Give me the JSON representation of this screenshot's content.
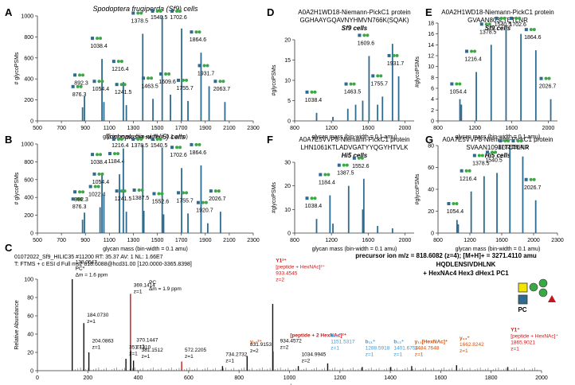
{
  "chart_data": [
    {
      "id": "A",
      "type": "bar",
      "panel_label": "A",
      "title": "Spodoptera frugiperda (Sf9) cells",
      "xlabel": "glycan mass (bin-width = 0.1 amu)",
      "ylabel": "# glycoPSMs",
      "xlim": [
        500,
        2300
      ],
      "ylim": [
        0,
        1000
      ],
      "xticks": [
        500,
        700,
        900,
        1100,
        1300,
        1500,
        1700,
        1900,
        2100,
        2300
      ],
      "yticks": [
        0,
        200,
        400,
        600,
        800,
        1000
      ],
      "x": [
        876.3,
        892.3,
        1038.4,
        1054.4,
        1216.4,
        1241.5,
        1378.5,
        1463.5,
        1540.5,
        1609.6,
        1702.6,
        1755.7,
        1864.6,
        1931.7,
        2063.7
      ],
      "values": [
        130,
        240,
        590,
        180,
        370,
        150,
        830,
        210,
        1000,
        250,
        880,
        190,
        650,
        330,
        180
      ],
      "labels": [
        "876.3",
        "892.3",
        "1038.4",
        "1054.4",
        "1216.4",
        "1241.5",
        "1378.5",
        "1463.5",
        "1540.5",
        "1609.6",
        "1702.6",
        "1755.7",
        "1864.6",
        "1931.7",
        "2063.7"
      ]
    },
    {
      "id": "B",
      "type": "bar",
      "panel_label": "B",
      "title": "Trichoplusia ni (Hi5) cells",
      "xlabel": "glycan mass (bin-width = 0.1 amu)",
      "ylabel": "# glycoPSMs",
      "xlim": [
        500,
        2300
      ],
      "ylim": [
        0,
        1000
      ],
      "xticks": [
        500,
        700,
        900,
        1100,
        1300,
        1500,
        1700,
        1900,
        2100,
        2300
      ],
      "yticks": [
        0,
        200,
        400,
        600,
        800,
        1000
      ],
      "x": [
        876.3,
        892.3,
        1022.4,
        1038.4,
        1054.4,
        1184.4,
        1216.4,
        1241.5,
        1378.5,
        1387.5,
        1540.5,
        1552.6,
        1702.6,
        1755.7,
        1864.6,
        1920.7,
        2026.7
      ],
      "values": [
        150,
        230,
        290,
        650,
        430,
        660,
        950,
        240,
        990,
        250,
        960,
        210,
        730,
        220,
        760,
        110,
        240
      ],
      "labels": [
        "876.3",
        "892.3",
        "1022.4",
        "1038.4",
        "1054.4",
        "1184.4",
        "1216.4",
        "1241.5",
        "1378.5",
        "1387.5",
        "1540.5",
        "1552.6",
        "1702.6",
        "1755.7",
        "1864.6",
        "1920.7",
        "2026.7"
      ]
    },
    {
      "id": "D",
      "type": "bar",
      "panel_label": "D",
      "title_lines": [
        "A0A2H1WD18-Niemann-PickC1 protein",
        "GGHAAYGQAVNYHMVN766K(SQAK)",
        "Sf9 cells"
      ],
      "xlabel": "glycan mass (bin-width = 0.1 amu)",
      "ylabel": "#glycoPSMs",
      "xlim": [
        800,
        2100
      ],
      "ylim": [
        0,
        20
      ],
      "xticks": [
        800,
        1200,
        1600,
        2000
      ],
      "yticks": [
        0,
        5,
        10,
        15,
        20
      ],
      "x": [
        1038.4,
        1216.4,
        1378.5,
        1463.5,
        1540.5,
        1609.6,
        1702.6,
        1755.7,
        1864.6,
        1931.7
      ],
      "values": [
        2,
        1,
        3,
        4,
        5,
        16,
        4,
        6,
        19,
        11
      ],
      "labels": [
        "1038.4",
        "",
        "",
        "1463.5",
        "",
        "1609.6",
        "",
        "1755.7",
        "",
        "1931.7"
      ]
    },
    {
      "id": "E",
      "type": "bar",
      "panel_label": "E",
      "title_lines": [
        "A0A2H1WD18-Niemann-PickC1 protein",
        "GVAAN803LTETLNR",
        "Sf9 cells"
      ],
      "xlabel": "glycan mass (bin-width = 0.1 amu)",
      "ylabel": "#glycoPSMs",
      "xlim": [
        800,
        2100
      ],
      "ylim": [
        0,
        18
      ],
      "xticks": [
        800,
        1200,
        1600,
        2000
      ],
      "yticks": [
        0,
        2,
        4,
        6,
        8,
        10,
        12,
        14,
        16,
        18
      ],
      "x": [
        1038.4,
        1054.4,
        1216.4,
        1378.5,
        1540.5,
        1702.6,
        1864.6,
        2026.7
      ],
      "values": [
        4,
        3,
        9,
        14,
        17,
        16,
        13,
        4
      ],
      "labels": [
        "",
        "1054.4",
        "1216.4",
        "1378.5",
        "1540.5",
        "1702.6",
        "1864.6",
        "2026.7"
      ]
    },
    {
      "id": "F",
      "type": "bar",
      "panel_label": "F",
      "title_lines": [
        "A0A7E5VVP8-Niemann-PickC1 protein",
        "LHN1061KTLADVGATYYQGYHTVLK",
        "Hi5 cells"
      ],
      "xlabel": "glycan mass (bin-width = 0.1 amu)",
      "ylabel": "#glycoPSMs",
      "xlim": [
        800,
        2100
      ],
      "ylim": [
        0,
        30
      ],
      "xticks": [
        800,
        1200,
        1600,
        2000
      ],
      "yticks": [
        0,
        10,
        20,
        30
      ],
      "x": [
        1038.4,
        1184.4,
        1216.4,
        1387.5,
        1540.5,
        1552.6,
        1702.6,
        1864.6
      ],
      "values": [
        6,
        16,
        4,
        20,
        10,
        23,
        3,
        2
      ],
      "labels": [
        "1038.4",
        "1184.4",
        "",
        "1387.5",
        "",
        "1552.6",
        "",
        ""
      ]
    },
    {
      "id": "G",
      "type": "bar",
      "panel_label": "G",
      "title_lines": [
        "A0A7E5VVP8-Niemann-PickC1 protein",
        "SVAAN1098LTETLNR",
        "Hi5 cells"
      ],
      "xlabel": "glycan mass (bin-width = 0.1 amu)",
      "ylabel": "#glycoPSMs",
      "xlim": [
        800,
        2300
      ],
      "ylim": [
        0,
        80
      ],
      "xticks": [
        800,
        1200,
        1600,
        2000,
        2300
      ],
      "yticks": [
        0,
        20,
        40,
        60,
        80
      ],
      "x": [
        1038.4,
        1054.4,
        1216.4,
        1378.5,
        1540.5,
        1702.6,
        1864.6,
        2026.7
      ],
      "values": [
        12,
        8,
        38,
        52,
        55,
        78,
        70,
        30
      ],
      "labels": [
        "",
        "1054.4",
        "1216.4",
        "1378.5",
        "1540.5",
        "1702.6",
        "1864.6",
        "2026.7"
      ]
    },
    {
      "id": "C",
      "type": "bar",
      "panel_label": "C",
      "header_lines": [
        "01072022_Sf9_HILIC35 #11200 RT: 35.37 AV: 1 NL: 1.66E7",
        "T: FTMS + c ESI d Full ms2 818.6088@hcd31.00 [120.0000-3365.8398]"
      ],
      "precursor": "precursor ion m/z = 818.6082 (z=4); [M+H]+ = 3271.4110 amu",
      "peptide": "HQDLENSIVDHLNK",
      "glycan": "+ HexNAc4 Hex3 dHex1 PC1",
      "pc_label": "PC",
      "xlabel": "m/z",
      "ylabel": "Relative Abundance",
      "xlim": [
        0,
        2000
      ],
      "ylim": [
        0,
        100
      ],
      "xticks": [
        0,
        200,
        400,
        600,
        800,
        1000,
        1200,
        1400,
        1600,
        1800,
        2000
      ],
      "yticks": [
        0,
        20,
        40,
        60,
        80,
        100
      ],
      "peaks_x": [
        138.05,
        184.07,
        204.09,
        351.13,
        369.14,
        370.14,
        381.15,
        572.22,
        734.27,
        831.92,
        933.45,
        934.46,
        1034.99,
        1151.52,
        1288.59,
        1401.68,
        1484.76,
        1662.82,
        1865.9
      ],
      "peaks_y": [
        100,
        52,
        20,
        13,
        84,
        22,
        11,
        10,
        5,
        16,
        73,
        21,
        5,
        8,
        4,
        4,
        5,
        6,
        4
      ],
      "peak_colors": [
        "black",
        "black",
        "black",
        "black",
        "red",
        "black",
        "black",
        "red",
        "black",
        "black",
        "black",
        "black",
        "black",
        "black",
        "black",
        "black",
        "black",
        "black",
        "black"
      ],
      "annotations": [
        {
          "lines": [
            "138.0547",
            "PC*",
            "Δm = 1.6 ppm"
          ],
          "color": "#000000"
        },
        {
          "lines": [
            "184.0730",
            "z=1"
          ],
          "color": "#000000"
        },
        {
          "lines": [
            "204.0863",
            "z=1"
          ],
          "color": "#000000"
        },
        {
          "lines": [
            "351.1310",
            "z=1"
          ],
          "color": "#000000"
        },
        {
          "lines": [
            "369.1414",
            "z=1"
          ],
          "color": "#000000"
        },
        {
          "lines": [
            "PC",
            "Δm = 1.9 ppm"
          ],
          "color": "#000000"
        },
        {
          "lines": [
            "370.1447",
            "z=1"
          ],
          "color": "#000000"
        },
        {
          "lines": [
            "381.1512",
            "z=1"
          ],
          "color": "#000000"
        },
        {
          "lines": [
            "572.2205",
            "z=1"
          ],
          "color": "#000000"
        },
        {
          "lines": [
            "734.2732",
            "z=1"
          ],
          "color": "#000000"
        },
        {
          "lines": [
            "831.9153",
            "z=2"
          ],
          "color": "#000000"
        },
        {
          "lines": [
            "y₁₂²⁺"
          ],
          "color": "#d4500b"
        },
        {
          "lines": [
            "Y1²⁺",
            "[peptide + HexNAc]²⁺",
            "933.4545",
            "z=2"
          ],
          "color": "#d01414"
        },
        {
          "lines": [
            "934.4572",
            "z=2"
          ],
          "color": "#000000"
        },
        {
          "lines": [
            "[peptide + 2 HexNAc]²⁺"
          ],
          "color": "#d01414"
        },
        {
          "lines": [
            "1034.9945",
            "z=2"
          ],
          "color": "#000000"
        },
        {
          "lines": [
            "b₁₀⁺",
            "1151.5317",
            "z=1"
          ],
          "color": "#3a9ad9"
        },
        {
          "lines": [
            "b₁₁⁺",
            "1288.5918",
            "z=1"
          ],
          "color": "#3a9ad9"
        },
        {
          "lines": [
            "b₁₂⁺",
            "1401.6754",
            "z=1"
          ],
          "color": "#3a9ad9"
        },
        {
          "lines": [
            "y₁₁[HexNAc]⁺",
            "1484.7648",
            "z=1"
          ],
          "color": "#d4500b"
        },
        {
          "lines": [
            "y₁₄⁺",
            "1662.8242",
            "z=1"
          ],
          "color": "#d4500b"
        },
        {
          "lines": [
            "Y1⁺",
            "[peptide + HexNAc]⁺",
            "1865.9021",
            "z=1"
          ],
          "color": "#d01414"
        }
      ]
    }
  ],
  "colors": {
    "bar": "#2e6b8f",
    "red": "#d01414",
    "orange": "#d4500b",
    "blue_label": "#3a9ad9",
    "green": "#3aa844",
    "yellow": "#f2e600"
  }
}
